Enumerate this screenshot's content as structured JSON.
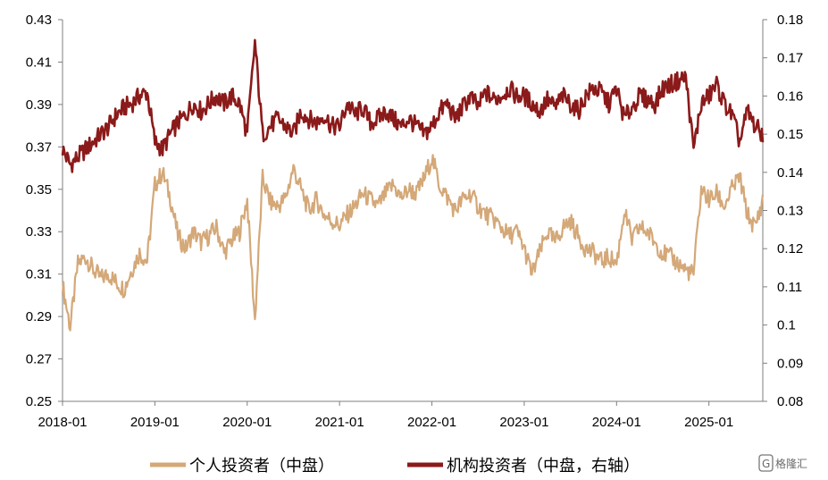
{
  "chart_data": {
    "type": "line",
    "title": "",
    "xlabel": "",
    "ylabel": "",
    "y2label": "",
    "grid": false,
    "legend_position": "bottom",
    "x_range": [
      "2018-01",
      "2025-08"
    ],
    "x_ticks": [
      "2018-01",
      "2019-01",
      "2020-01",
      "2021-01",
      "2022-01",
      "2023-01",
      "2024-01",
      "2025-01"
    ],
    "ylim_left": [
      0.25,
      0.43
    ],
    "y_ticks_left": [
      "0.25",
      "0.27",
      "0.29",
      "0.31",
      "0.33",
      "0.35",
      "0.37",
      "0.39",
      "0.41",
      "0.43"
    ],
    "ylim_right": [
      0.08,
      0.18
    ],
    "y_ticks_right": [
      "0.08",
      "0.09",
      "0.1",
      "0.11",
      "0.12",
      "0.13",
      "0.14",
      "0.15",
      "0.16",
      "0.17",
      "0.18"
    ],
    "series": [
      {
        "name": "个人投资者（中盘）",
        "axis": "left",
        "color": "#d4a878",
        "x": [
          "2018-01",
          "2018-02",
          "2018-03",
          "2018-04",
          "2018-05",
          "2018-06",
          "2018-07",
          "2018-08",
          "2018-09",
          "2018-10",
          "2018-11",
          "2018-12",
          "2019-01",
          "2019-02",
          "2019-03",
          "2019-04",
          "2019-05",
          "2019-06",
          "2019-07",
          "2019-08",
          "2019-09",
          "2019-10",
          "2019-11",
          "2019-12",
          "2020-01",
          "2020-02",
          "2020-03",
          "2020-04",
          "2020-05",
          "2020-06",
          "2020-07",
          "2020-08",
          "2020-09",
          "2020-10",
          "2020-11",
          "2020-12",
          "2021-01",
          "2021-02",
          "2021-03",
          "2021-04",
          "2021-05",
          "2021-06",
          "2021-07",
          "2021-08",
          "2021-09",
          "2021-10",
          "2021-11",
          "2021-12",
          "2022-01",
          "2022-02",
          "2022-03",
          "2022-04",
          "2022-05",
          "2022-06",
          "2022-07",
          "2022-08",
          "2022-09",
          "2022-10",
          "2022-11",
          "2022-12",
          "2023-01",
          "2023-02",
          "2023-03",
          "2023-04",
          "2023-05",
          "2023-06",
          "2023-07",
          "2023-08",
          "2023-09",
          "2023-10",
          "2023-11",
          "2023-12",
          "2024-01",
          "2024-02",
          "2024-03",
          "2024-04",
          "2024-05",
          "2024-06",
          "2024-07",
          "2024-08",
          "2024-09",
          "2024-10",
          "2024-11",
          "2024-12",
          "2025-01",
          "2025-02",
          "2025-03",
          "2025-04",
          "2025-05",
          "2025-06",
          "2025-07",
          "2025-08"
        ],
        "values": [
          0.305,
          0.285,
          0.315,
          0.318,
          0.312,
          0.308,
          0.31,
          0.306,
          0.303,
          0.312,
          0.32,
          0.316,
          0.352,
          0.358,
          0.346,
          0.328,
          0.322,
          0.33,
          0.325,
          0.328,
          0.332,
          0.32,
          0.326,
          0.33,
          0.345,
          0.288,
          0.355,
          0.344,
          0.342,
          0.346,
          0.36,
          0.35,
          0.34,
          0.345,
          0.338,
          0.335,
          0.333,
          0.338,
          0.342,
          0.348,
          0.345,
          0.342,
          0.348,
          0.352,
          0.346,
          0.35,
          0.348,
          0.355,
          0.365,
          0.352,
          0.346,
          0.34,
          0.345,
          0.348,
          0.342,
          0.338,
          0.336,
          0.332,
          0.328,
          0.33,
          0.322,
          0.31,
          0.32,
          0.33,
          0.325,
          0.332,
          0.335,
          0.328,
          0.322,
          0.32,
          0.316,
          0.318,
          0.315,
          0.34,
          0.326,
          0.332,
          0.33,
          0.325,
          0.32,
          0.318,
          0.315,
          0.312,
          0.31,
          0.35,
          0.345,
          0.348,
          0.342,
          0.35,
          0.356,
          0.338,
          0.332,
          0.345
        ]
      },
      {
        "name": "机构投资者（中盘，右轴",
        "axis": "right",
        "color": "#8b1a1a",
        "x": [
          "2018-01",
          "2018-02",
          "2018-03",
          "2018-04",
          "2018-05",
          "2018-06",
          "2018-07",
          "2018-08",
          "2018-09",
          "2018-10",
          "2018-11",
          "2018-12",
          "2019-01",
          "2019-02",
          "2019-03",
          "2019-04",
          "2019-05",
          "2019-06",
          "2019-07",
          "2019-08",
          "2019-09",
          "2019-10",
          "2019-11",
          "2019-12",
          "2020-01",
          "2020-02",
          "2020-03",
          "2020-04",
          "2020-05",
          "2020-06",
          "2020-07",
          "2020-08",
          "2020-09",
          "2020-10",
          "2020-11",
          "2020-12",
          "2021-01",
          "2021-02",
          "2021-03",
          "2021-04",
          "2021-05",
          "2021-06",
          "2021-07",
          "2021-08",
          "2021-09",
          "2021-10",
          "2021-11",
          "2021-12",
          "2022-01",
          "2022-02",
          "2022-03",
          "2022-04",
          "2022-05",
          "2022-06",
          "2022-07",
          "2022-08",
          "2022-09",
          "2022-10",
          "2022-11",
          "2022-12",
          "2023-01",
          "2023-02",
          "2023-03",
          "2023-04",
          "2023-05",
          "2023-06",
          "2023-07",
          "2023-08",
          "2023-09",
          "2023-10",
          "2023-11",
          "2023-12",
          "2024-01",
          "2024-02",
          "2024-03",
          "2024-04",
          "2024-05",
          "2024-06",
          "2024-07",
          "2024-08",
          "2024-09",
          "2024-10",
          "2024-11",
          "2024-12",
          "2025-01",
          "2025-02",
          "2025-03",
          "2025-04",
          "2025-05",
          "2025-06",
          "2025-07",
          "2025-08"
        ],
        "values": [
          0.146,
          0.142,
          0.144,
          0.146,
          0.148,
          0.15,
          0.152,
          0.155,
          0.157,
          0.158,
          0.16,
          0.161,
          0.148,
          0.146,
          0.15,
          0.153,
          0.155,
          0.158,
          0.156,
          0.158,
          0.16,
          0.158,
          0.16,
          0.158,
          0.15,
          0.174,
          0.15,
          0.152,
          0.154,
          0.152,
          0.15,
          0.156,
          0.154,
          0.153,
          0.155,
          0.152,
          0.152,
          0.158,
          0.155,
          0.157,
          0.153,
          0.154,
          0.156,
          0.154,
          0.152,
          0.154,
          0.152,
          0.15,
          0.152,
          0.156,
          0.158,
          0.154,
          0.157,
          0.16,
          0.157,
          0.161,
          0.159,
          0.16,
          0.162,
          0.16,
          0.16,
          0.158,
          0.156,
          0.159,
          0.157,
          0.16,
          0.158,
          0.156,
          0.16,
          0.162,
          0.161,
          0.158,
          0.162,
          0.154,
          0.157,
          0.16,
          0.159,
          0.158,
          0.162,
          0.163,
          0.164,
          0.165,
          0.146,
          0.158,
          0.16,
          0.163,
          0.158,
          0.155,
          0.148,
          0.156,
          0.152,
          0.15
        ]
      }
    ],
    "legend": [
      {
        "label": "个人投资者（中盘）",
        "color": "#d4a878"
      },
      {
        "label": "机构投资者（中盘，右轴）",
        "color": "#8b1a1a"
      }
    ]
  },
  "watermark": {
    "text": "格隆汇",
    "badge": "G"
  }
}
